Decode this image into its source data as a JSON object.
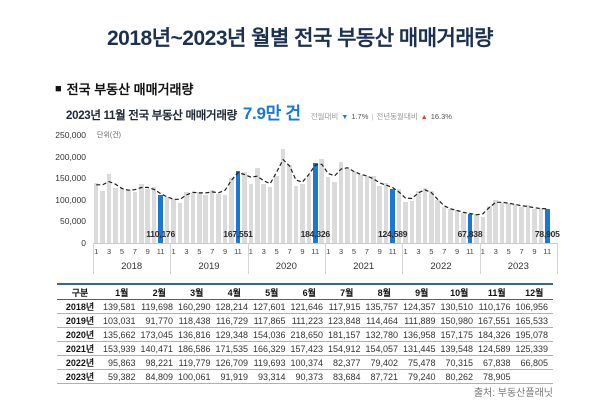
{
  "title": "2018년~2023년 월별 전국 부동산 매매거래량",
  "section": {
    "bullet": "■",
    "heading": "전국 부동산 매매거래량"
  },
  "highlight_line": {
    "prefix": "2023년 11월 전국 부동산 매매거래량",
    "value": "7.9만 건",
    "mom_label": "전월대비",
    "mom_dir": "▼",
    "mom_value": "1.7%",
    "divider": "|",
    "yoy_label": "전년동월대비",
    "yoy_dir": "▲",
    "yoy_value": "16.3%"
  },
  "chart_data": {
    "type": "bar",
    "title": "전국 부동산 매매거래량",
    "unit_label": "단위(건)",
    "ylim": [
      0,
      250000
    ],
    "y_ticks": [
      {
        "label": "250,000",
        "value": 250000
      },
      {
        "label": "200,000",
        "value": 200000
      },
      {
        "label": "150,000",
        "value": 150000
      },
      {
        "label": "100,000",
        "value": 100000
      },
      {
        "label": "50,000",
        "value": 50000
      },
      {
        "label": "0",
        "value": 0
      }
    ],
    "x_tick_months": [
      "1",
      "3",
      "5",
      "7",
      "9",
      "11"
    ],
    "years": [
      "2018",
      "2019",
      "2020",
      "2021",
      "2022",
      "2023"
    ],
    "series": [
      {
        "name": "2018년",
        "values": [
          139581,
          119698,
          160290,
          128214,
          127601,
          121646,
          117915,
          135757,
          124357,
          130510,
          110176,
          106956
        ]
      },
      {
        "name": "2019년",
        "values": [
          103031,
          91770,
          118438,
          116729,
          117865,
          111223,
          123848,
          114464,
          111889,
          150980,
          167551,
          165533
        ]
      },
      {
        "name": "2020년",
        "values": [
          135662,
          173045,
          136816,
          129348,
          154036,
          218650,
          181157,
          132780,
          136958,
          157175,
          184326,
          195078
        ]
      },
      {
        "name": "2021년",
        "values": [
          153939,
          140471,
          186586,
          171535,
          166329,
          157423,
          154912,
          154057,
          131445,
          139548,
          124589,
          125339
        ]
      },
      {
        "name": "2022년",
        "values": [
          95863,
          98221,
          119779,
          126709,
          119693,
          100374,
          82377,
          79402,
          75478,
          70315,
          67838,
          66805
        ]
      },
      {
        "name": "2023년",
        "values": [
          59382,
          84809,
          100061,
          91919,
          93314,
          90373,
          83684,
          87721,
          79240,
          80262,
          78905,
          null
        ]
      }
    ],
    "highlight_month_index": 10,
    "highlight_labels": [
      "110,176",
      "167,551",
      "184,326",
      "124,589",
      "67,838",
      "78,905"
    ],
    "trend_overlay": "dashed-line",
    "colors": {
      "bar_default": "#dbdbdb",
      "bar_highlight": "#1a78d2",
      "trend_line": "#1f1f1f"
    }
  },
  "table": {
    "col_headers": [
      "구분",
      "1월",
      "2월",
      "3월",
      "4월",
      "5월",
      "6월",
      "7월",
      "8월",
      "9월",
      "10월",
      "11월",
      "12월"
    ],
    "rows": [
      {
        "label": "2018년",
        "values": [
          "139,581",
          "119,698",
          "160,290",
          "128,214",
          "127,601",
          "121,646",
          "117,915",
          "135,757",
          "124,357",
          "130,510",
          "110,176",
          "106,956"
        ]
      },
      {
        "label": "2019년",
        "values": [
          "103,031",
          "91,770",
          "118,438",
          "116,729",
          "117,865",
          "111,223",
          "123,848",
          "114,464",
          "111,889",
          "150,980",
          "167,551",
          "165,533"
        ]
      },
      {
        "label": "2020년",
        "values": [
          "135,662",
          "173,045",
          "136,816",
          "129,348",
          "154,036",
          "218,650",
          "181,157",
          "132,780",
          "136,958",
          "157,175",
          "184,326",
          "195,078"
        ]
      },
      {
        "label": "2021년",
        "values": [
          "153,939",
          "140,471",
          "186,586",
          "171,535",
          "166,329",
          "157,423",
          "154,912",
          "154,057",
          "131,445",
          "139,548",
          "124,589",
          "125,339"
        ]
      },
      {
        "label": "2022년",
        "values": [
          "95,863",
          "98,221",
          "119,779",
          "126,709",
          "119,693",
          "100,374",
          "82,377",
          "79,402",
          "75,478",
          "70,315",
          "67,838",
          "66,805"
        ]
      },
      {
        "label": "2023년",
        "values": [
          "59,382",
          "84,809",
          "100,061",
          "91,919",
          "93,314",
          "90,373",
          "83,684",
          "87,721",
          "79,240",
          "80,262",
          "78,905",
          ""
        ]
      }
    ]
  },
  "source": "출처: 부동산플래닛",
  "colors": {
    "title": "#1c3150",
    "accent_blue": "#1677e0",
    "alert_red": "#e23b3b"
  }
}
